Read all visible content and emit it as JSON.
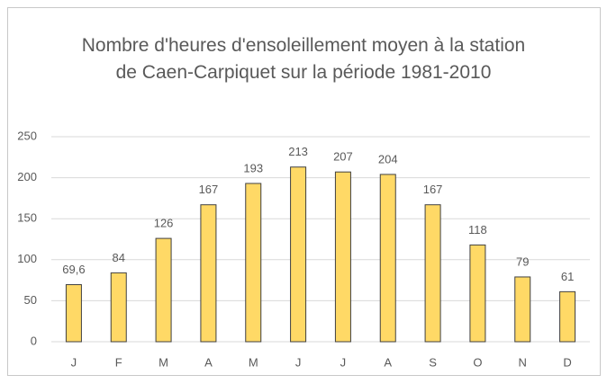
{
  "chart_data": {
    "type": "bar",
    "title": "Nombre d'heures d'ensoleillement moyen à la station de Caen-Carpiquet sur la période 1981-2010",
    "categories": [
      "J",
      "F",
      "M",
      "A",
      "M",
      "J",
      "J",
      "A",
      "S",
      "O",
      "N",
      "D"
    ],
    "values": [
      69.6,
      84,
      126,
      167,
      193,
      213,
      207,
      204,
      167,
      118,
      79,
      61
    ],
    "value_labels": [
      "69,6",
      "84",
      "126",
      "167",
      "193",
      "213",
      "207",
      "204",
      "167",
      "118",
      "79",
      "61"
    ],
    "color": "#ffd966",
    "ylim": [
      0,
      250
    ],
    "yticks": [
      0,
      50,
      100,
      150,
      200,
      250
    ],
    "grid": true
  }
}
